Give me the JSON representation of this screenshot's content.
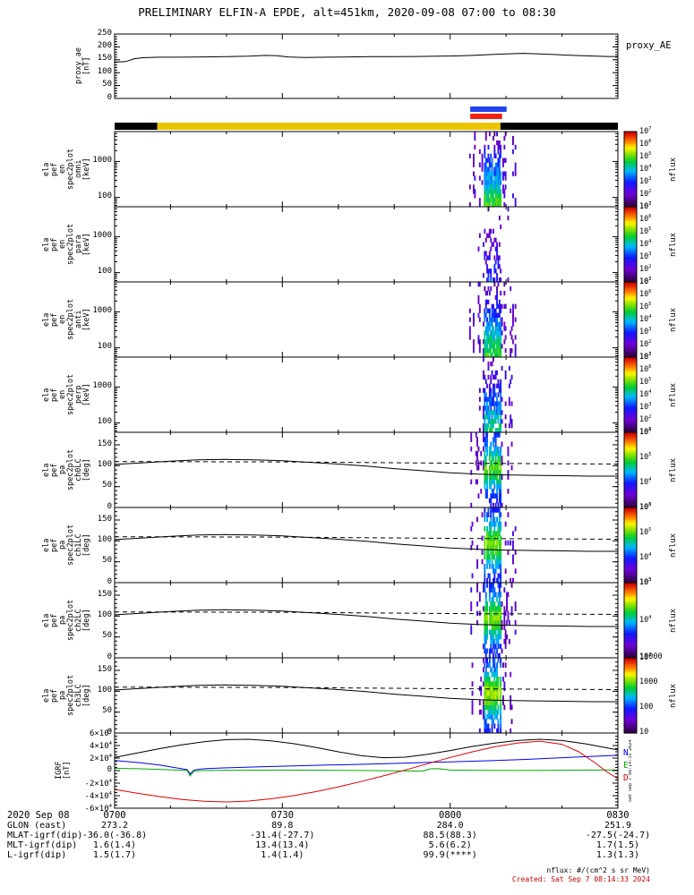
{
  "title": "PRELIMINARY ELFIN-A EPDE, alt=451km, 2020-09-08 07:00 to 08:30",
  "footer": {
    "units_note": "nflux: #/(cm^2 s sr MeV)",
    "created_note": "Created: Sat Sep  7 08:14:33 2024",
    "side_timestamp": "Sat Sep  7 08:14:33 2024"
  },
  "time_axis": {
    "date_label": "2020 Sep 08",
    "tick_labels": [
      "0700",
      "0730",
      "0800",
      "0830"
    ],
    "tick_minutes": [
      0,
      30,
      60,
      90
    ],
    "minor_tick_minutes": [
      10,
      20,
      40,
      50,
      70,
      80
    ],
    "range_minutes": [
      0,
      90
    ]
  },
  "ephemeris_rows": [
    {
      "label": "GLON (east)",
      "values": [
        "273.2",
        "89.8",
        "284.0",
        "251.9"
      ]
    },
    {
      "label": "MLAT-igrf(dip)",
      "values": [
        "-36.0(-36.8)",
        "-31.4(-27.7)",
        "88.5(88.3)",
        "-27.5(-24.7)"
      ]
    },
    {
      "label": "MLT-igrf(dip)",
      "values": [
        "1.6(1.4)",
        "13.4(13.4)",
        "5.6(6.2)",
        "1.7(1.5)"
      ]
    },
    {
      "label": "L-igrf(dip)",
      "values": [
        "1.5(1.7)",
        "1.4(1.4)",
        "99.9(****)",
        "1.3(1.3)"
      ]
    }
  ],
  "status_bars": {
    "blue_bar": {
      "t0": 63.6,
      "t1": 70.1,
      "color": "#2244ee"
    },
    "red_bar": {
      "t0": 63.6,
      "t1": 69.3,
      "color": "#ee2211"
    },
    "epoch_bar": {
      "segments": [
        {
          "t0": 0,
          "t1": 7.6,
          "color": "#000000"
        },
        {
          "t0": 7.6,
          "t1": 69.0,
          "color": "#e9c400"
        },
        {
          "t0": 69.0,
          "t1": 90,
          "color": "#000000"
        }
      ]
    }
  },
  "chart_data": [
    {
      "id": "proxy_ae",
      "type": "line",
      "ylabel_lines": [
        "proxy_ae",
        "[nT]"
      ],
      "right_label": "proxy_AE",
      "ylim": [
        0,
        250
      ],
      "yminor_step": 10,
      "ytick_values": [
        0,
        50,
        100,
        150,
        200,
        250
      ],
      "ytick_labels": [
        "0",
        "50",
        "100",
        "150",
        "200",
        "250"
      ],
      "series": [
        {
          "name": "proxy_AE",
          "color": "#000000",
          "x": [
            0,
            2,
            3.5,
            5,
            8,
            12,
            16,
            20,
            24,
            27,
            29,
            31,
            34,
            38,
            42,
            46,
            50,
            54,
            58,
            61,
            64,
            67,
            70,
            73,
            76,
            79,
            82,
            85,
            88,
            90
          ],
          "y": [
            141,
            143,
            154,
            158,
            160,
            160,
            161,
            162,
            164,
            167,
            166,
            161,
            159,
            160,
            161,
            162,
            162,
            163,
            164,
            165,
            167,
            170,
            173,
            175,
            173,
            170,
            167,
            165,
            163,
            162
          ]
        }
      ]
    },
    {
      "id": "ela_pef_en_spec2plot_omni",
      "type": "energy_spectrogram",
      "ylabel_lines": [
        "ela",
        "pef",
        "en",
        "spec2plot",
        "omni",
        "[keV]"
      ],
      "yscale": "log",
      "ylim": [
        55,
        6800
      ],
      "ytick_values": [
        100,
        1000
      ],
      "ytick_labels": [
        "100",
        "1000"
      ],
      "colorbar": {
        "label": "nflux",
        "tick_labels": [
          "10^7",
          "10^6",
          "10^5",
          "10^4",
          "10^3",
          "10^2",
          "10^1"
        ]
      },
      "burst": {
        "t0": 63.4,
        "t1": 71.6,
        "core_t0": 65.9,
        "core_t1": 69.1,
        "density": 1.0,
        "brightness": 1.0,
        "seed": 11
      }
    },
    {
      "id": "ela_pef_en_spec2plot_para",
      "type": "energy_spectrogram",
      "ylabel_lines": [
        "ela",
        "pef",
        "en",
        "spec2plot",
        "para",
        "[keV]"
      ],
      "yscale": "log",
      "ylim": [
        55,
        6800
      ],
      "ytick_values": [
        100,
        1000
      ],
      "ytick_labels": [
        "100",
        "1000"
      ],
      "colorbar": {
        "label": "nflux",
        "tick_labels": [
          "10^7",
          "10^6",
          "10^5",
          "10^4",
          "10^3",
          "10^2",
          "10^1"
        ]
      },
      "burst": {
        "t0": 63.4,
        "t1": 71.6,
        "core_t0": 65.9,
        "core_t1": 69.1,
        "density": 0.35,
        "brightness": 0.5,
        "seed": 23
      }
    },
    {
      "id": "ela_pef_en_spec2plot_anti",
      "type": "energy_spectrogram",
      "ylabel_lines": [
        "ela",
        "pef",
        "en",
        "spec2plot",
        "anti",
        "[keV]"
      ],
      "yscale": "log",
      "ylim": [
        55,
        6800
      ],
      "ytick_values": [
        100,
        1000
      ],
      "ytick_labels": [
        "100",
        "1000"
      ],
      "colorbar": {
        "label": "nflux",
        "tick_labels": [
          "10^7",
          "10^6",
          "10^5",
          "10^4",
          "10^3",
          "10^2",
          "10^1"
        ]
      },
      "burst": {
        "t0": 63.4,
        "t1": 71.6,
        "core_t0": 65.9,
        "core_t1": 69.1,
        "density": 0.95,
        "brightness": 1.0,
        "seed": 37
      }
    },
    {
      "id": "ela_pef_en_spec2plot_perp",
      "type": "energy_spectrogram",
      "ylabel_lines": [
        "ela",
        "pef",
        "en",
        "spec2plot",
        "perp",
        "[keV]"
      ],
      "yscale": "log",
      "ylim": [
        55,
        6800
      ],
      "ytick_values": [
        100,
        1000
      ],
      "ytick_labels": [
        "100",
        "1000"
      ],
      "colorbar": {
        "label": "nflux",
        "tick_labels": [
          "10^7",
          "10^6",
          "10^5",
          "10^4",
          "10^3",
          "10^2",
          "10^1"
        ]
      },
      "burst": {
        "t0": 63.4,
        "t1": 71.6,
        "core_t0": 65.9,
        "core_t1": 69.1,
        "density": 0.8,
        "brightness": 0.88,
        "seed": 51
      }
    },
    {
      "id": "ela_pef_pa_spec2plot_ch0LC",
      "type": "pa_spectrogram",
      "ylabel_lines": [
        "ela",
        "pef",
        "pa",
        "spec2plot",
        "ch0LC",
        "[deg]"
      ],
      "ylim": [
        0,
        180
      ],
      "yminor_step": 10,
      "ytick_values": [
        0,
        50,
        100,
        150
      ],
      "ytick_labels": [
        "0",
        "50",
        "100",
        "150"
      ],
      "colorbar": {
        "label": "nflux",
        "tick_labels": [
          "10^6",
          "10^5",
          "10^4",
          "10^3"
        ]
      },
      "burst": {
        "t0": 63.4,
        "t1": 71.6,
        "core_t0": 65.9,
        "core_t1": 69.1,
        "density": 0.9,
        "brightness": 0.95,
        "seed": 61
      },
      "overlays": {
        "loss_cone": {
          "style": "solid",
          "color": "#000000",
          "x": [
            0,
            5,
            10,
            15,
            20,
            25,
            30,
            35,
            40,
            45,
            50,
            55,
            60,
            65,
            70,
            75,
            80,
            85,
            90
          ],
          "y": [
            103,
            107,
            111,
            114,
            115,
            114,
            112,
            108,
            104,
            99,
            93,
            88,
            83,
            80,
            78,
            77,
            76,
            75,
            75
          ]
        },
        "anti_loss_cone": {
          "style": "dashed",
          "color": "#000000",
          "x": [
            0,
            30,
            60,
            90
          ],
          "y": [
            110,
            109,
            106,
            104
          ]
        }
      }
    },
    {
      "id": "ela_pef_pa_spec2plot_ch1LC",
      "type": "pa_spectrogram",
      "ylabel_lines": [
        "ela",
        "pef",
        "pa",
        "spec2plot",
        "ch1LC",
        "[deg]"
      ],
      "ylim": [
        0,
        180
      ],
      "yminor_step": 10,
      "ytick_values": [
        0,
        50,
        100,
        150
      ],
      "ytick_labels": [
        "0",
        "50",
        "100",
        "150"
      ],
      "colorbar": {
        "label": "nflux",
        "tick_labels": [
          "10^6",
          "10^5",
          "10^4",
          "10^3"
        ]
      },
      "burst": {
        "t0": 63.4,
        "t1": 71.6,
        "core_t0": 65.9,
        "core_t1": 69.1,
        "density": 0.9,
        "brightness": 1.0,
        "seed": 73
      },
      "overlays": {
        "loss_cone": {
          "style": "solid",
          "color": "#000000",
          "x": [
            0,
            5,
            10,
            15,
            20,
            25,
            30,
            35,
            40,
            45,
            50,
            55,
            60,
            65,
            70,
            75,
            80,
            85,
            90
          ],
          "y": [
            103,
            107,
            111,
            114,
            115,
            114,
            112,
            108,
            104,
            99,
            93,
            88,
            83,
            80,
            78,
            77,
            76,
            75,
            75
          ]
        },
        "anti_loss_cone": {
          "style": "dashed",
          "color": "#000000",
          "x": [
            0,
            30,
            60,
            90
          ],
          "y": [
            110,
            109,
            106,
            104
          ]
        }
      }
    },
    {
      "id": "ela_pef_pa_spec2plot_ch2LC",
      "type": "pa_spectrogram",
      "ylabel_lines": [
        "ela",
        "pef",
        "pa",
        "spec2plot",
        "ch2LC",
        "[deg]"
      ],
      "ylim": [
        0,
        180
      ],
      "yminor_step": 10,
      "ytick_values": [
        0,
        50,
        100,
        150
      ],
      "ytick_labels": [
        "0",
        "50",
        "100",
        "150"
      ],
      "colorbar": {
        "label": "nflux",
        "tick_labels": [
          "10^5",
          "10^4",
          "10^3"
        ]
      },
      "burst": {
        "t0": 63.4,
        "t1": 71.6,
        "core_t0": 65.9,
        "core_t1": 69.1,
        "density": 0.92,
        "brightness": 1.0,
        "seed": 87
      },
      "overlays": {
        "loss_cone": {
          "style": "solid",
          "color": "#000000",
          "x": [
            0,
            5,
            10,
            15,
            20,
            25,
            30,
            35,
            40,
            45,
            50,
            55,
            60,
            65,
            70,
            75,
            80,
            85,
            90
          ],
          "y": [
            103,
            107,
            111,
            114,
            115,
            114,
            112,
            108,
            104,
            99,
            93,
            88,
            83,
            80,
            78,
            77,
            76,
            75,
            75
          ]
        },
        "anti_loss_cone": {
          "style": "dashed",
          "color": "#000000",
          "x": [
            0,
            30,
            60,
            90
          ],
          "y": [
            110,
            109,
            106,
            104
          ]
        }
      }
    },
    {
      "id": "ela_pef_pa_spec2plot_ch3LC",
      "type": "pa_spectrogram",
      "ylabel_lines": [
        "ela",
        "pef",
        "pa",
        "spec2plot",
        "ch3LC",
        "[deg]"
      ],
      "ylim": [
        0,
        180
      ],
      "yminor_step": 10,
      "ytick_values": [
        0,
        50,
        100,
        150
      ],
      "ytick_labels": [
        "0",
        "50",
        "100",
        "150"
      ],
      "colorbar": {
        "label": "nflux",
        "tick_labels": [
          "10000",
          "1000",
          "100",
          "10"
        ]
      },
      "burst": {
        "t0": 63.4,
        "t1": 71.6,
        "core_t0": 65.9,
        "core_t1": 69.1,
        "density": 0.95,
        "brightness": 1.05,
        "seed": 95
      },
      "overlays": {
        "loss_cone": {
          "style": "solid",
          "color": "#000000",
          "x": [
            0,
            5,
            10,
            15,
            20,
            25,
            30,
            35,
            40,
            45,
            50,
            55,
            60,
            65,
            70,
            75,
            80,
            85,
            90
          ],
          "y": [
            103,
            107,
            111,
            114,
            115,
            114,
            112,
            108,
            104,
            99,
            93,
            88,
            83,
            80,
            78,
            77,
            76,
            75,
            75
          ]
        },
        "anti_loss_cone": {
          "style": "dashed",
          "color": "#000000",
          "x": [
            0,
            30,
            60,
            90
          ],
          "y": [
            110,
            109,
            106,
            104
          ]
        }
      }
    },
    {
      "id": "IGRF",
      "type": "line",
      "ylabel_lines": [
        "IGRF",
        "[nT]"
      ],
      "ylim": [
        -60000,
        60000
      ],
      "yminor_step": 5000,
      "ytick_values": [
        -60000,
        -40000,
        -20000,
        0,
        20000,
        40000,
        60000
      ],
      "ytick_labels": [
        "-6×10^4",
        "-4×10^4",
        "-2×10^4",
        "0",
        "2×10^4",
        "4×10^4",
        "6×10^4"
      ],
      "right_legend": [
        {
          "label": "N",
          "color": "#0000ee"
        },
        {
          "label": "E",
          "color": "#00aa00"
        },
        {
          "label": "D",
          "color": "#dd0000"
        }
      ],
      "series": [
        {
          "name": "B",
          "color": "#000000",
          "x": [
            0,
            4,
            8,
            12,
            16,
            20,
            24,
            28,
            32,
            36,
            40,
            44,
            48,
            52,
            56,
            60,
            64,
            68,
            72,
            76,
            80,
            84,
            87,
            90
          ],
          "y": [
            21000,
            28000,
            35000,
            41000,
            46000,
            49500,
            50000,
            47500,
            43000,
            37000,
            30000,
            24000,
            20500,
            21500,
            26000,
            32000,
            38500,
            44000,
            48000,
            50000,
            48000,
            43000,
            38000,
            33000
          ]
        },
        {
          "name": "N",
          "color": "#0000ee",
          "x": [
            0,
            4,
            8,
            11,
            13,
            13.5,
            14.2,
            16,
            20,
            26,
            32,
            38,
            44,
            50,
            56,
            62,
            68,
            74,
            80,
            85,
            90
          ],
          "y": [
            16000,
            13000,
            9000,
            4500,
            1500,
            -5500,
            1000,
            3000,
            4500,
            6000,
            7500,
            8800,
            10000,
            11500,
            13000,
            14500,
            16000,
            18000,
            20500,
            22500,
            24500
          ]
        },
        {
          "name": "E",
          "color": "#00aa00",
          "x": [
            0,
            4,
            8,
            11,
            13,
            13.5,
            14.2,
            16,
            22,
            30,
            38,
            46,
            52,
            55,
            56.5,
            58,
            60,
            66,
            72,
            80,
            86,
            90
          ],
          "y": [
            3500,
            3000,
            2000,
            800,
            0,
            -8500,
            -500,
            200,
            500,
            800,
            500,
            0,
            -500,
            -800,
            2800,
            3000,
            800,
            300,
            200,
            500,
            800,
            1000
          ]
        },
        {
          "name": "D",
          "color": "#dd0000",
          "x": [
            0,
            4,
            8,
            12,
            16,
            20,
            24,
            28,
            32,
            36,
            40,
            44,
            48,
            52,
            56,
            60,
            64,
            68,
            72,
            76,
            80,
            83,
            86,
            88,
            90
          ],
          "y": [
            -30000,
            -36000,
            -41500,
            -46000,
            -49000,
            -50000,
            -48500,
            -45000,
            -40000,
            -33500,
            -26000,
            -17500,
            -8500,
            1000,
            11000,
            21000,
            30000,
            38000,
            44000,
            47000,
            42000,
            30000,
            12000,
            -2000,
            -13000
          ]
        }
      ]
    }
  ]
}
